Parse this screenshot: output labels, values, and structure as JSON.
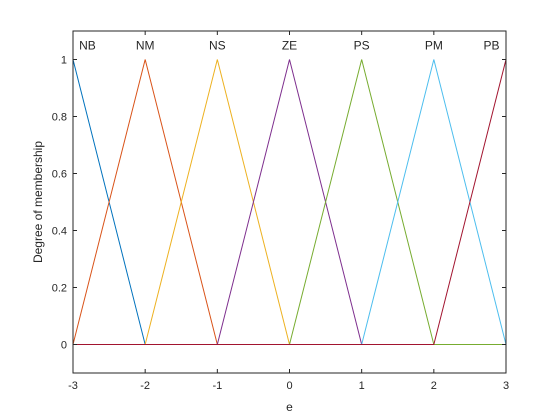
{
  "chart_data": {
    "type": "line",
    "title": "",
    "xlabel": "e",
    "ylabel": "Degree of membership",
    "xlim": [
      -3,
      3
    ],
    "ylim": [
      -0.1,
      1.1
    ],
    "xticks": [
      -3,
      -2,
      -1,
      0,
      1,
      2,
      3
    ],
    "yticks": [
      0,
      0.2,
      0.4,
      0.6,
      0.8,
      1
    ],
    "grid": false,
    "series": [
      {
        "name": "NB",
        "color": "#0072BD",
        "x": [
          -3,
          -3,
          -2,
          3
        ],
        "y": [
          0,
          1,
          0,
          0
        ]
      },
      {
        "name": "NM",
        "color": "#D95319",
        "x": [
          -3,
          -2,
          -1,
          3
        ],
        "y": [
          0,
          1,
          0,
          0
        ]
      },
      {
        "name": "NS",
        "color": "#EDB120",
        "x": [
          -3,
          -2,
          -1,
          0,
          3
        ],
        "y": [
          0,
          0,
          1,
          0,
          0
        ]
      },
      {
        "name": "ZE",
        "color": "#7E2F8E",
        "x": [
          -3,
          -1,
          0,
          1,
          3
        ],
        "y": [
          0,
          0,
          1,
          0,
          0
        ]
      },
      {
        "name": "PS",
        "color": "#77AC30",
        "x": [
          -3,
          0,
          1,
          2,
          3
        ],
        "y": [
          0,
          0,
          1,
          0,
          0
        ]
      },
      {
        "name": "PM",
        "color": "#4DBEEE",
        "x": [
          -3,
          1,
          2,
          3
        ],
        "y": [
          0,
          0,
          1,
          0
        ]
      },
      {
        "name": "PB",
        "color": "#A2142F",
        "x": [
          -3,
          2,
          3,
          3
        ],
        "y": [
          0,
          0,
          1,
          0
        ]
      }
    ],
    "labels": [
      {
        "text": "NB",
        "x": -2.8,
        "y": 1.05
      },
      {
        "text": "NM",
        "x": -2.0,
        "y": 1.05
      },
      {
        "text": "NS",
        "x": -1.0,
        "y": 1.05
      },
      {
        "text": "ZE",
        "x": 0.0,
        "y": 1.05
      },
      {
        "text": "PS",
        "x": 1.0,
        "y": 1.05
      },
      {
        "text": "PM",
        "x": 2.0,
        "y": 1.05
      },
      {
        "text": "PB",
        "x": 2.8,
        "y": 1.05
      }
    ]
  }
}
